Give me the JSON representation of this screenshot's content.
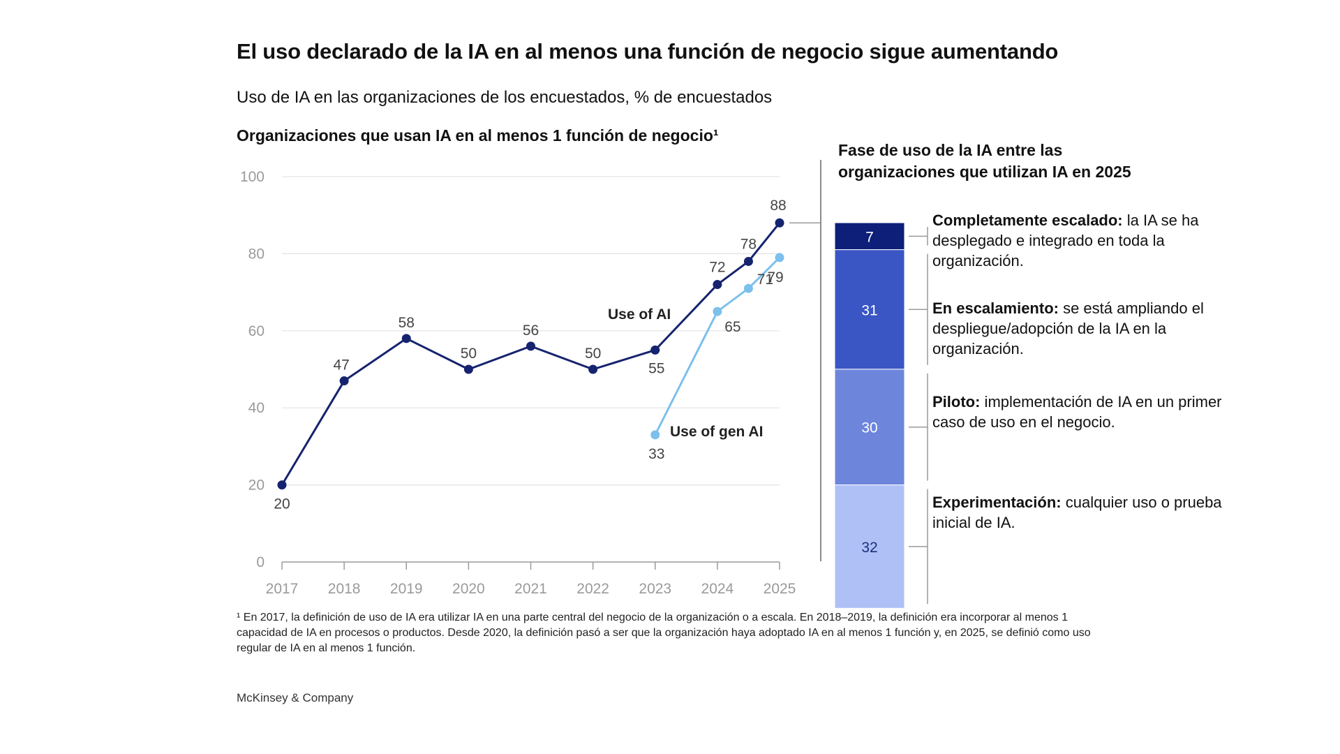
{
  "title": "El uso declarado de la IA en al menos una función de negocio sigue aumentando",
  "subtitle": "Uso de IA en las organizaciones de los encuestados, % de encuestados",
  "left_heading": "Organizaciones que usan IA en al menos 1 función de negocio¹",
  "right_heading": "Fase de uso de la IA entre las organizaciones que utilizan IA en 2025",
  "colors": {
    "use_of_ai": "#16236e",
    "use_of_gen_ai": "#7cc0ec",
    "grid": "#e3e3e3",
    "seg_scaled": "#0d1f78",
    "seg_scaling": "#3a55c4",
    "seg_pilot": "#6d86dc",
    "seg_experiment": "#aec0f6"
  },
  "stages": [
    {
      "bold": "Completamente escalado:",
      "text": " la IA se ha desplegado e integrado en toda la organización."
    },
    {
      "bold": "En escalamiento:",
      "text": " se está ampliando el despliegue/adopción de la IA en la organización."
    },
    {
      "bold": "Piloto:",
      "text": " implementación de IA en un primer caso de uso en el negocio."
    },
    {
      "bold": "Experimentación:",
      "text": " cualquier uso o prueba inicial de IA."
    }
  ],
  "footnote": "¹ En 2017, la definición de uso de IA era utilizar IA en una parte central del negocio de la organización o a escala. En 2018–2019, la definición era incorporar al menos 1 capacidad de IA en procesos o productos. Desde 2020, la definición pasó a ser que la organización haya adoptado IA en al menos 1 función y, en 2025, se definió como uso regular de IA en al menos 1 función.",
  "brand": "McKinsey & Company",
  "chart_data": [
    {
      "type": "line",
      "title": "Organizaciones que usan IA en al menos 1 función de negocio¹",
      "ylim": [
        0,
        100
      ],
      "yticks": [
        0,
        20,
        40,
        60,
        80,
        100
      ],
      "xticks": [
        "2017",
        "2018",
        "2019",
        "2020",
        "2021",
        "2022",
        "2023",
        "2024",
        "2025"
      ],
      "series": [
        {
          "name": "Use of AI",
          "x": [
            2017,
            2018,
            2019,
            2020,
            2021,
            2022,
            2023,
            2024,
            2024.5,
            2025
          ],
          "values": [
            20,
            47,
            58,
            50,
            56,
            50,
            55,
            72,
            78,
            88
          ],
          "labels": [
            "20",
            "47",
            "58",
            "50",
            "56",
            "50",
            "55",
            "72",
            "78",
            "88"
          ]
        },
        {
          "name": "Use of gen AI",
          "x": [
            2023,
            2024,
            2024.5,
            2025
          ],
          "values": [
            33,
            65,
            71,
            79
          ],
          "labels": [
            "33",
            "65",
            "71",
            "79"
          ]
        }
      ]
    },
    {
      "type": "bar",
      "stacked": true,
      "title": "Fase de uso de la IA entre las organizaciones que utilizan IA en 2025",
      "total": 88,
      "segments": [
        {
          "name": "Completamente escalado",
          "value": 7,
          "label": "7"
        },
        {
          "name": "En escalamiento",
          "value": 31,
          "label": "31"
        },
        {
          "name": "Piloto",
          "value": 30,
          "label": "30"
        },
        {
          "name": "Experimentación",
          "value": 32,
          "label": "32"
        }
      ]
    }
  ]
}
